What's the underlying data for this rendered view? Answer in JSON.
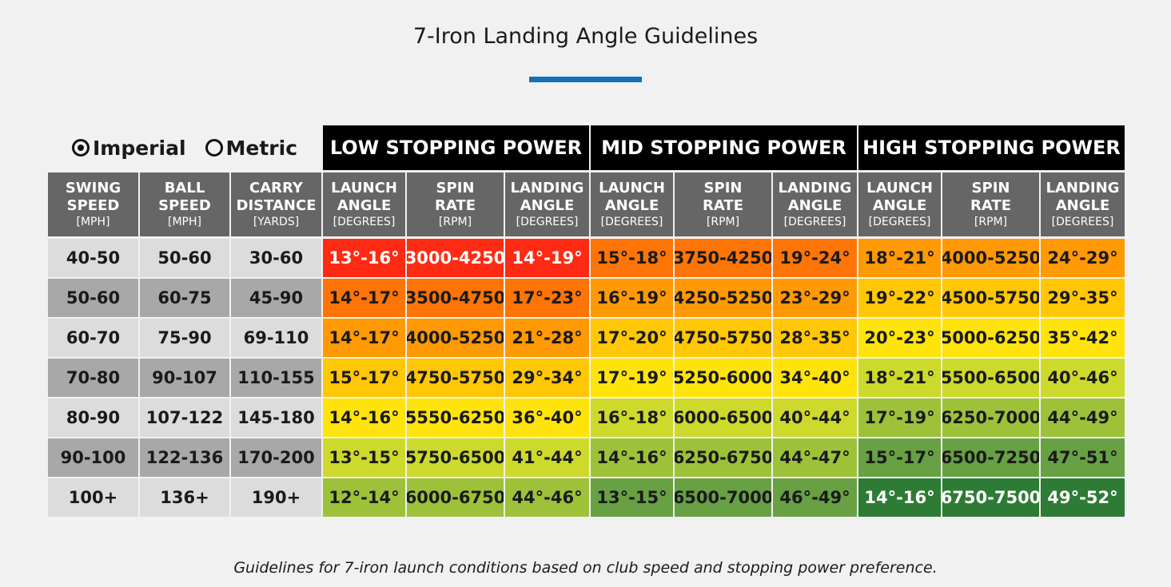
{
  "title": "7-Iron Landing Angle Guidelines",
  "caption": "Guidelines for 7-iron launch conditions based on club speed and stopping power preference.",
  "units_toggle": {
    "options": [
      {
        "label": "Imperial",
        "selected": true
      },
      {
        "label": "Metric",
        "selected": false
      }
    ]
  },
  "chart_data": {
    "type": "table",
    "title": "7-Iron Landing Angle Guidelines",
    "input_columns": [
      {
        "line1": "SWING",
        "line2": "SPEED",
        "unit": "[MPH]"
      },
      {
        "line1": "BALL",
        "line2": "SPEED",
        "unit": "[MPH]"
      },
      {
        "line1": "CARRY",
        "line2": "DISTANCE",
        "unit": "[YARDS]"
      }
    ],
    "groups": [
      {
        "label": "LOW STOPPING POWER"
      },
      {
        "label": "MID STOPPING POWER"
      },
      {
        "label": "HIGH STOPPING POWER"
      }
    ],
    "group_columns": [
      {
        "line1": "LAUNCH",
        "line2": "ANGLE",
        "unit": "[DEGREES]"
      },
      {
        "line1": "SPIN",
        "line2": "RATE",
        "unit": "[RPM]"
      },
      {
        "line1": "LANDING",
        "line2": "ANGLE",
        "unit": "[DEGREES]"
      }
    ],
    "rows": [
      {
        "cells": [
          "40-50",
          "50-60",
          "30-60",
          "13°-16°",
          "3000-4250",
          "14°-19°",
          "15°-18°",
          "3750-4250",
          "19°-24°",
          "18°-21°",
          "4000-5250",
          "24°-29°"
        ]
      },
      {
        "cells": [
          "50-60",
          "60-75",
          "45-90",
          "14°-17°",
          "3500-4750",
          "17°-23°",
          "16°-19°",
          "4250-5250",
          "23°-29°",
          "19°-22°",
          "4500-5750",
          "29°-35°"
        ]
      },
      {
        "cells": [
          "60-70",
          "75-90",
          "69-110",
          "14°-17°",
          "4000-5250",
          "21°-28°",
          "17°-20°",
          "4750-5750",
          "28°-35°",
          "20°-23°",
          "5000-6250",
          "35°-42°"
        ]
      },
      {
        "cells": [
          "70-80",
          "90-107",
          "110-155",
          "15°-17°",
          "4750-5750",
          "29°-34°",
          "17°-19°",
          "5250-6000",
          "34°-40°",
          "18°-21°",
          "5500-6500",
          "40°-46°"
        ]
      },
      {
        "cells": [
          "80-90",
          "107-122",
          "145-180",
          "14°-16°",
          "5550-6250",
          "36°-40°",
          "16°-18°",
          "6000-6500",
          "40°-44°",
          "17°-19°",
          "6250-7000",
          "44°-49°"
        ]
      },
      {
        "cells": [
          "90-100",
          "122-136",
          "170-200",
          "13°-15°",
          "5750-6500",
          "41°-44°",
          "14°-16°",
          "6250-6750",
          "44°-47°",
          "15°-17°",
          "6500-7250",
          "47°-51°"
        ]
      },
      {
        "cells": [
          "100+",
          "136+",
          "190+",
          "12°-14°",
          "6000-6750",
          "44°-46°",
          "13°-15°",
          "6500-7000",
          "46°-49°",
          "14°-16°",
          "6750-7500",
          "49°-52°"
        ]
      }
    ],
    "row_fills": [
      [
        "#dcdcdc",
        "#ff2a13",
        "#ff7505",
        "#ff9904"
      ],
      [
        "#a8a8a8",
        "#ff7505",
        "#ff9904",
        "#ffc704"
      ],
      [
        "#dcdcdc",
        "#ff9904",
        "#ffc704",
        "#ffe40b"
      ],
      [
        "#a8a8a8",
        "#ffc704",
        "#ffe40b",
        "#cdda2c"
      ],
      [
        "#dcdcdc",
        "#ffe40b",
        "#cdda2c",
        "#9dc23a"
      ],
      [
        "#a8a8a8",
        "#cdda2c",
        "#9dc23a",
        "#68a044"
      ],
      [
        "#dcdcdc",
        "#9dc23a",
        "#68a044",
        "#2e7b35"
      ]
    ]
  }
}
